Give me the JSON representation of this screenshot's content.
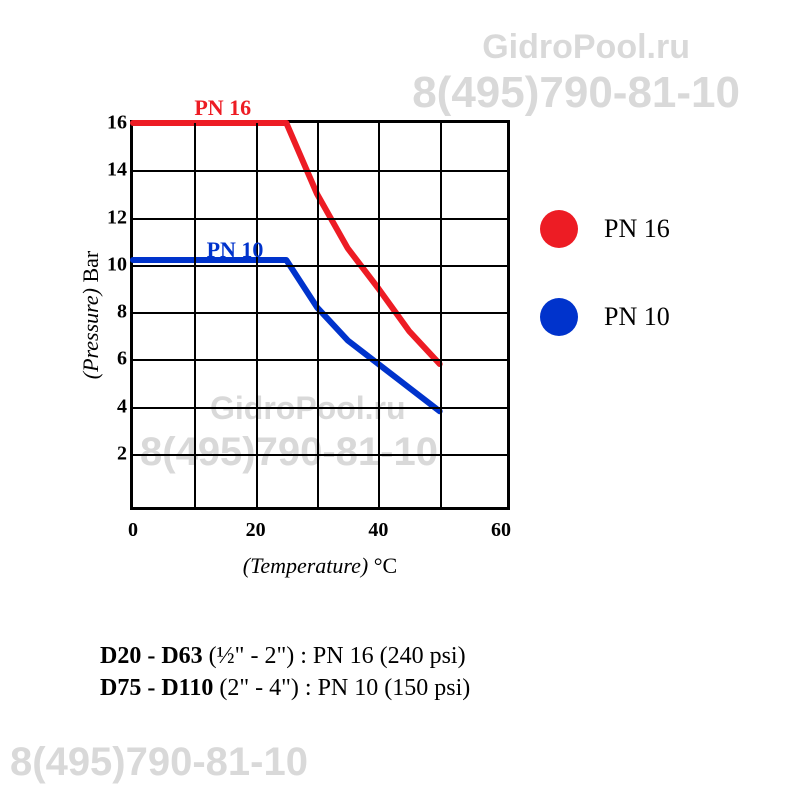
{
  "watermarks": {
    "site": "GidroPool.ru",
    "phone": "8(495)790-81-10"
  },
  "chart": {
    "type": "line",
    "background_color": "#ffffff",
    "grid_color": "#000000",
    "border_color": "#000000",
    "border_width": 3,
    "grid_line_width": 2,
    "x": {
      "label_italic": "(Temperature)",
      "label_unit": "°C",
      "min": 0,
      "max": 60,
      "tick_step": 20,
      "ticks": [
        0,
        20,
        40,
        60
      ],
      "minor_gridlines": [
        10,
        30,
        50
      ],
      "fontsize": 20
    },
    "y": {
      "label_italic": "(Pressure)",
      "label_unit": "Bar",
      "min": 0,
      "max": 16,
      "ticks": [
        2,
        4,
        6,
        8,
        10,
        12,
        14,
        16
      ],
      "fontsize": 20
    },
    "series": [
      {
        "name": "PN 16",
        "color": "#ed1c24",
        "line_width": 6,
        "label_pos_x": 10,
        "label_pos_y": 16,
        "points": [
          {
            "x": 0,
            "y": 16.0
          },
          {
            "x": 25,
            "y": 16.0
          },
          {
            "x": 30,
            "y": 13.0
          },
          {
            "x": 35,
            "y": 10.7
          },
          {
            "x": 40,
            "y": 9.0
          },
          {
            "x": 45,
            "y": 7.2
          },
          {
            "x": 50,
            "y": 5.8
          }
        ]
      },
      {
        "name": "PN 10",
        "color": "#0033cc",
        "line_width": 6,
        "label_pos_x": 12,
        "label_pos_y": 10,
        "points": [
          {
            "x": 0,
            "y": 10.2
          },
          {
            "x": 25,
            "y": 10.2
          },
          {
            "x": 30,
            "y": 8.2
          },
          {
            "x": 35,
            "y": 6.8
          },
          {
            "x": 40,
            "y": 5.8
          },
          {
            "x": 45,
            "y": 4.8
          },
          {
            "x": 50,
            "y": 3.8
          }
        ]
      }
    ],
    "legend": {
      "items": [
        {
          "label": "PN 16",
          "color": "#ed1c24"
        },
        {
          "label": "PN 10",
          "color": "#0033cc"
        }
      ],
      "dot_radius": 19,
      "fontsize": 26
    }
  },
  "caption": {
    "line1_bold": "D20 - D63",
    "line1_rest": "  (½\" - 2\") : PN 16 (240 psi)",
    "line2_bold": "D75 - D110",
    "line2_rest": " (2\" - 4\") : PN 10 (150 psi)"
  }
}
